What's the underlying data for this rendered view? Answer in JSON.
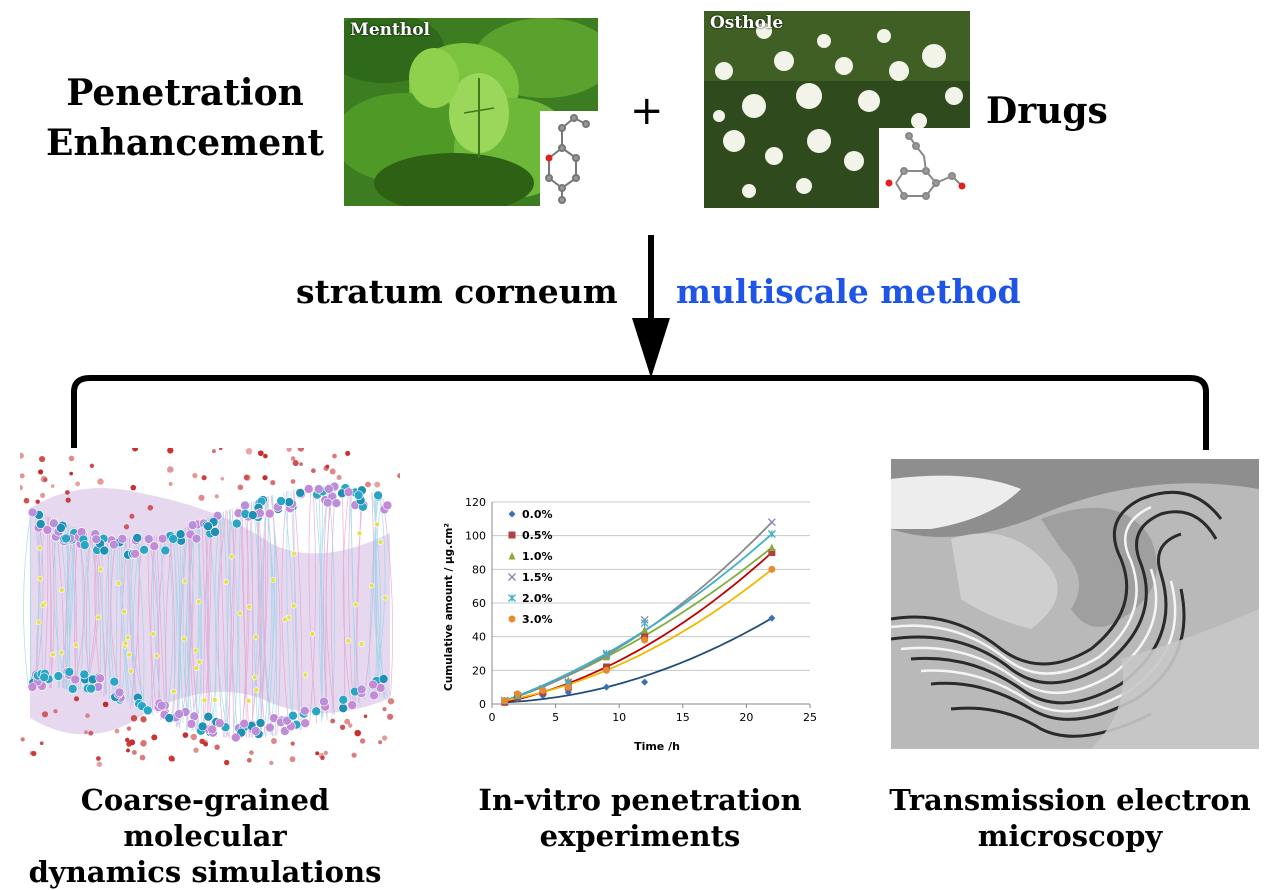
{
  "header": {
    "left_title_line1": "Penetration",
    "left_title_line2": "Enhancement",
    "plus": "+",
    "right_title": "Drugs"
  },
  "photos": {
    "menthol_label": "Menthol",
    "osthole_label": "Osthole"
  },
  "middle": {
    "left_label": "stratum corneum",
    "right_label": "multiscale method",
    "right_label_color": "#1e55e6"
  },
  "captions": {
    "simulation_line1": "Coarse-grained molecular",
    "simulation_line2": "dynamics simulations",
    "experiment_line1": "In-vitro penetration",
    "experiment_line2": "experiments",
    "tem_line1": "Transmission electron",
    "tem_line2": "microscopy"
  },
  "chart_data": {
    "type": "scatter",
    "xlabel": "Time /h",
    "ylabel": "Cumulative amount / μg.cm²",
    "xlim": [
      0,
      25
    ],
    "ylim": [
      0,
      120
    ],
    "xticks": [
      0,
      5,
      10,
      15,
      20,
      25
    ],
    "yticks": [
      0,
      20,
      40,
      60,
      80,
      100,
      120
    ],
    "grid": "horizontal",
    "legend_position": "top-left",
    "x": [
      1,
      2,
      4,
      6,
      9,
      12,
      22
    ],
    "series": [
      {
        "name": "0.0%",
        "marker": "diamond",
        "color": "#3a6fb5",
        "line_color": "#1f4e79",
        "values": [
          1,
          3,
          5,
          7,
          10,
          13,
          51
        ]
      },
      {
        "name": "0.5%",
        "marker": "square",
        "color": "#b0413e",
        "line_color": "#c00000",
        "values": [
          1,
          4,
          7,
          10,
          22,
          40,
          90
        ]
      },
      {
        "name": "1.0%",
        "marker": "triangle",
        "color": "#8aaa3c",
        "line_color": "#7fae3a",
        "values": [
          2,
          5,
          9,
          14,
          28,
          44,
          93
        ]
      },
      {
        "name": "1.5%",
        "marker": "x",
        "color": "#8c7fb0",
        "line_color": "#8a8a8a",
        "values": [
          2,
          5,
          9,
          13,
          29,
          50,
          108
        ]
      },
      {
        "name": "2.0%",
        "marker": "star",
        "color": "#3fb0c6",
        "line_color": "#3fb0c6",
        "values": [
          2,
          5,
          9,
          12,
          30,
          48,
          101
        ]
      },
      {
        "name": "3.0%",
        "marker": "circle",
        "color": "#e88a2e",
        "line_color": "#f0b800",
        "values": [
          2,
          6,
          8,
          10,
          20,
          38,
          80
        ]
      }
    ]
  }
}
